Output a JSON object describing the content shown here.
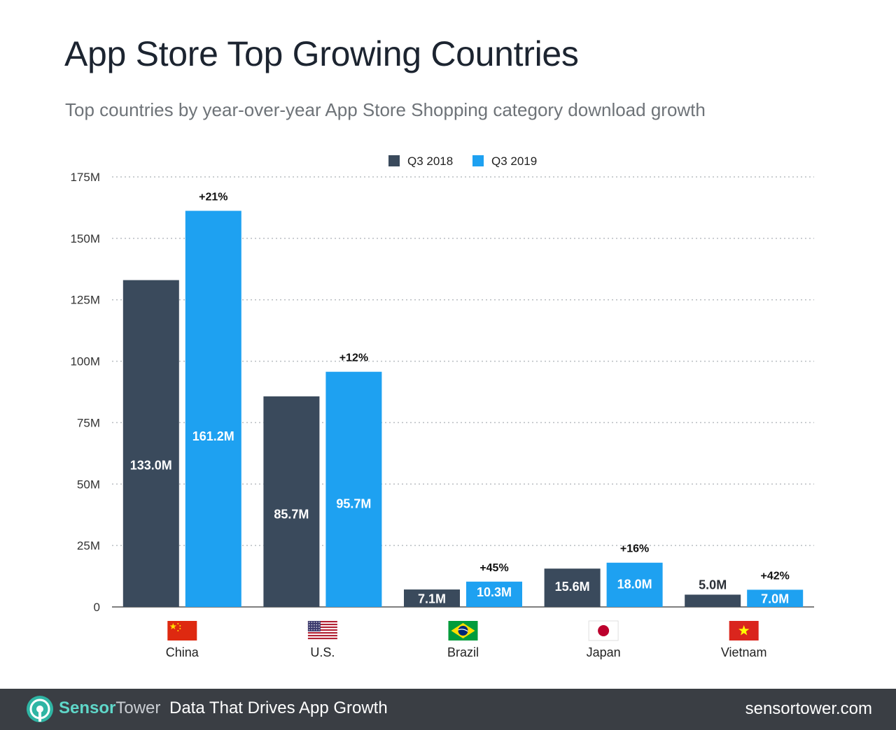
{
  "title": "App Store Top Growing Countries",
  "subtitle": "Top countries by year-over-year App Store Shopping category download growth",
  "footer": {
    "brand_first": "Sensor",
    "brand_second": "Tower",
    "tagline": "Data That Drives App Growth",
    "site": "sensortower.com"
  },
  "colors": {
    "q3_2018": "#3a4a5c",
    "q3_2019": "#1ea1f1",
    "footer_bg": "#3a3e44",
    "brand": "#5fd7c9"
  },
  "chart_data": {
    "type": "bar",
    "categories": [
      "China",
      "U.S.",
      "Brazil",
      "Japan",
      "Vietnam"
    ],
    "flag_icons": [
      "china-flag-icon",
      "us-flag-icon",
      "brazil-flag-icon",
      "japan-flag-icon",
      "vietnam-flag-icon"
    ],
    "series": [
      {
        "name": "Q3 2018",
        "values": [
          133.0,
          85.7,
          7.1,
          15.6,
          5.0
        ],
        "labels": [
          "133.0M",
          "85.7M",
          "7.1M",
          "15.6M",
          "5.0M"
        ]
      },
      {
        "name": "Q3 2019",
        "values": [
          161.2,
          95.7,
          10.3,
          18.0,
          7.0
        ],
        "labels": [
          "161.2M",
          "95.7M",
          "10.3M",
          "18.0M",
          "7.0M"
        ]
      }
    ],
    "growth_labels": [
      "+21%",
      "+12%",
      "+45%",
      "+16%",
      "+42%"
    ],
    "yticks": [
      0,
      25,
      50,
      75,
      100,
      125,
      150,
      175
    ],
    "ytick_labels": [
      "0",
      "25M",
      "50M",
      "75M",
      "100M",
      "125M",
      "150M",
      "175M"
    ],
    "ylim": [
      0,
      175
    ],
    "grid": true,
    "legend_position": "top-center"
  }
}
